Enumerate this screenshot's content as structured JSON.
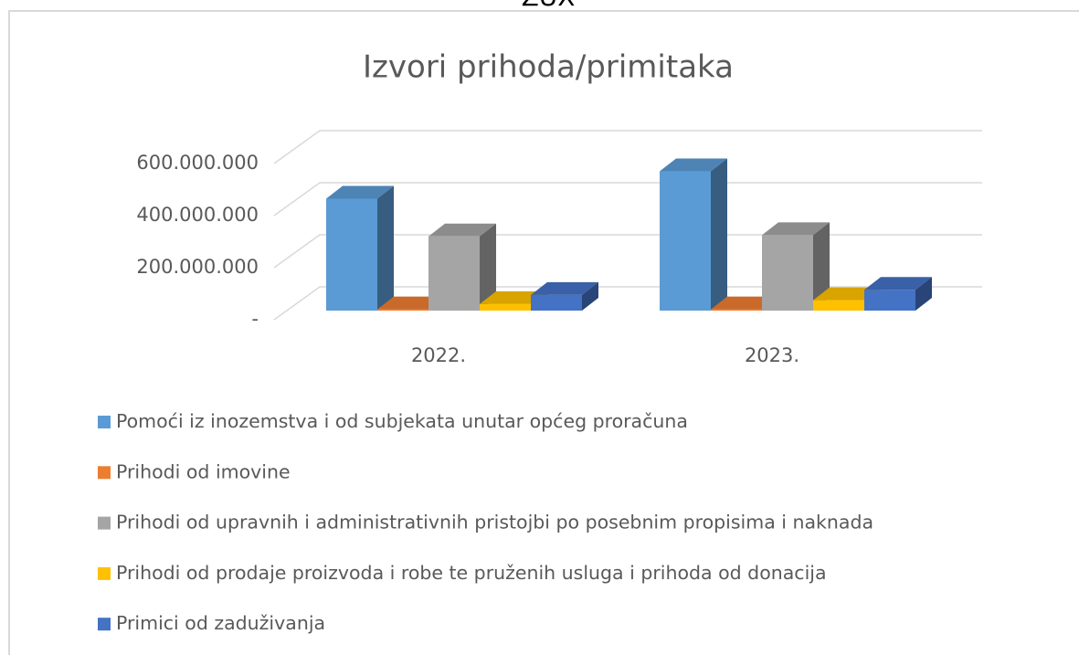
{
  "header": "ZUX",
  "chart_data": {
    "type": "bar3d",
    "title": "Izvori prihoda/primitaka",
    "categories": [
      "2022.",
      "2023."
    ],
    "series": [
      {
        "name": "Pomoći iz inozemstva i od subjekata unutar općeg proračuna",
        "color": "#5b9bd5",
        "values": [
          430000000,
          535000000
        ]
      },
      {
        "name": "Prihodi od imovine",
        "color": "#ed7d31",
        "values": [
          5000000,
          5000000
        ]
      },
      {
        "name": "Prihodi od upravnih i administrativnih pristojbi po posebnim propisima i naknada",
        "color": "#a5a5a5",
        "values": [
          285000000,
          290000000
        ]
      },
      {
        "name": "Prihodi od prodaje proizvoda i robe te pruženih usluga i prihoda od donacija",
        "color": "#ffc000",
        "values": [
          25000000,
          40000000
        ]
      },
      {
        "name": "Primici od zaduživanja",
        "color": "#4472c4",
        "values": [
          60000000,
          80000000
        ]
      }
    ],
    "ylim": [
      0,
      600000000
    ],
    "yticks": [
      {
        "value": 0,
        "label": "-"
      },
      {
        "value": 200000000,
        "label": "200.000.000"
      },
      {
        "value": 400000000,
        "label": "400.000.000"
      },
      {
        "value": 600000000,
        "label": "600.000.000"
      }
    ],
    "grid": true,
    "legend": "bottom"
  }
}
